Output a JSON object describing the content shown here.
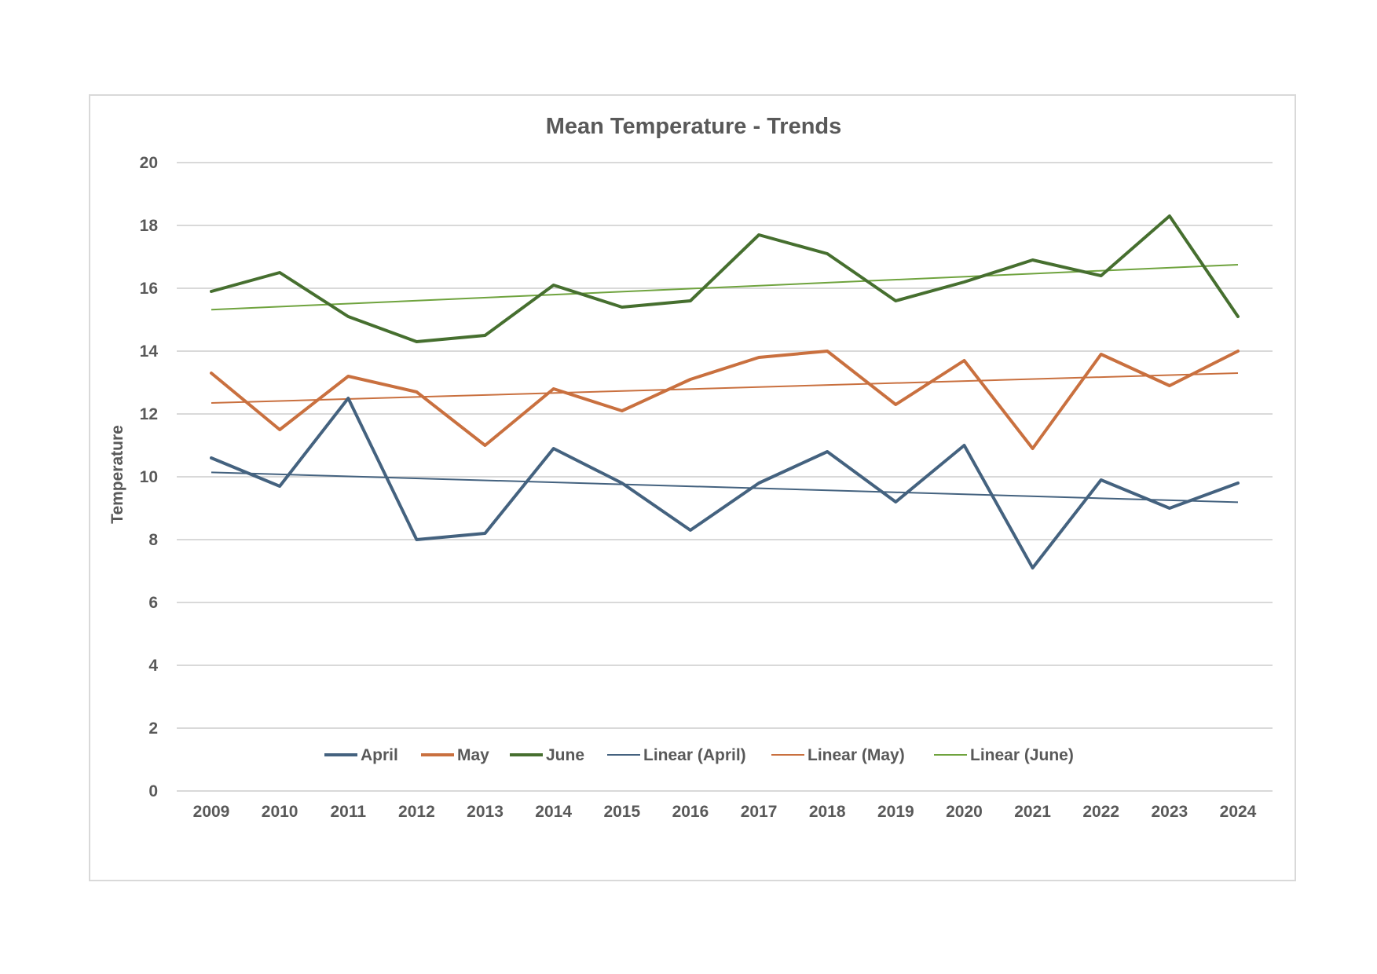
{
  "chart_data": {
    "type": "line",
    "title": "Mean Temperature - Trends",
    "xlabel": "",
    "ylabel": "Temperature",
    "ylim": [
      0,
      20
    ],
    "yticks": [
      "0",
      "2",
      "4",
      "6",
      "8",
      "10",
      "12",
      "14",
      "16",
      "18",
      "20"
    ],
    "grid": true,
    "legend_position": "bottom",
    "categories": [
      "2009",
      "2010",
      "2011",
      "2012",
      "2013",
      "2014",
      "2015",
      "2016",
      "2017",
      "2018",
      "2019",
      "2020",
      "2021",
      "2022",
      "2023",
      "2024"
    ],
    "series": [
      {
        "name": "April",
        "color": "#44627f",
        "values": [
          10.6,
          9.7,
          12.5,
          8.0,
          8.2,
          10.9,
          9.8,
          8.3,
          9.8,
          10.8,
          9.2,
          11.0,
          7.1,
          9.9,
          9.0,
          9.8
        ]
      },
      {
        "name": "May",
        "color": "#c9703f",
        "values": [
          13.3,
          11.5,
          13.2,
          12.7,
          11.0,
          12.8,
          12.1,
          13.1,
          13.8,
          14.0,
          12.3,
          13.7,
          10.9,
          13.9,
          12.9,
          14.0
        ]
      },
      {
        "name": "June",
        "color": "#466f2f",
        "values": [
          15.9,
          16.5,
          15.1,
          14.3,
          14.5,
          16.1,
          15.4,
          15.6,
          17.7,
          17.1,
          15.6,
          16.2,
          16.9,
          16.4,
          18.3,
          15.1
        ]
      }
    ],
    "trendlines": [
      {
        "name": "Linear (April)",
        "color": "#44627f",
        "start": 10.14,
        "end": 9.19
      },
      {
        "name": "Linear (May)",
        "color": "#c9703f",
        "start": 12.35,
        "end": 13.3
      },
      {
        "name": "Linear (June)",
        "color": "#6fa33e",
        "start": 15.32,
        "end": 16.75
      }
    ]
  }
}
